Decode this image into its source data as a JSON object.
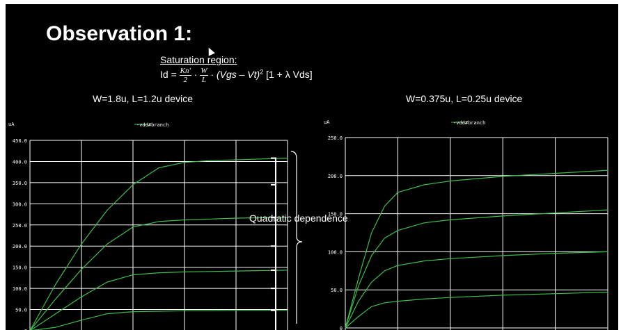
{
  "slide": {
    "title": "Observation 1:",
    "subheading": "Saturation region:",
    "formula": {
      "lhs": "Id =",
      "frac1_num": "Kn′",
      "frac1_den": "2",
      "dot1": "·",
      "frac2_num": "W",
      "frac2_den": "L",
      "term": "· (Vgs – Vt)",
      "exponent": "2",
      "tail": "[1 + λ Vds]"
    },
    "caption_left": "W=1.8u, L=1.2u device",
    "caption_right": "W=0.375u, L=0.25u device",
    "annotation": "Quadratic dependence"
  },
  "colors": {
    "background": "#000000",
    "grid": "#ffffff",
    "curve": "#3cbf4a",
    "text": "#ffffff"
  },
  "chart_data": [
    {
      "type": "line",
      "ylabel": "uA",
      "legend": "-vdd#branch",
      "legend_position": "top-center",
      "ylim": [
        0,
        450
      ],
      "yticks": [
        "0",
        "50.0",
        "100.0",
        "150.0",
        "200.0",
        "250.0",
        "300.0",
        "350.0",
        "400.0",
        "450.0"
      ],
      "ytick_values": [
        0,
        50,
        100,
        150,
        200,
        250,
        300,
        350,
        400,
        450
      ],
      "xlim": [
        0,
        5
      ],
      "grid": true,
      "series": [
        {
          "x": [
            0,
            0.5,
            1,
            1.5,
            2,
            2.5,
            3,
            3.5,
            4,
            4.5,
            5
          ],
          "values": [
            0,
            8,
            25,
            40,
            45,
            46,
            47,
            47,
            48,
            48,
            48
          ]
        },
        {
          "x": [
            0,
            0.5,
            1,
            1.5,
            2,
            2.5,
            3,
            3.5,
            4,
            4.5,
            5
          ],
          "values": [
            0,
            40,
            80,
            115,
            132,
            137,
            139,
            140,
            141,
            142,
            143
          ]
        },
        {
          "x": [
            0,
            0.5,
            1,
            1.5,
            2,
            2.5,
            3,
            3.5,
            4,
            4.5,
            5
          ],
          "values": [
            0,
            75,
            145,
            205,
            245,
            258,
            262,
            264,
            266,
            267,
            268
          ]
        },
        {
          "x": [
            0,
            0.5,
            1,
            1.5,
            2,
            2.5,
            3,
            3.5,
            4,
            4.5,
            5
          ],
          "values": [
            0,
            110,
            205,
            285,
            345,
            385,
            398,
            402,
            404,
            406,
            408
          ]
        }
      ]
    },
    {
      "type": "line",
      "ylabel": "uA",
      "legend": "-vdd#branch",
      "legend_position": "top-center",
      "ylim": [
        0,
        250
      ],
      "yticks": [
        "0",
        "50.0",
        "100.0",
        "150.0",
        "200.0",
        "250.0"
      ],
      "ytick_values": [
        0,
        50,
        100,
        150,
        200,
        250
      ],
      "xlim": [
        0,
        5
      ],
      "grid": true,
      "series": [
        {
          "x": [
            0,
            0.25,
            0.5,
            0.75,
            1,
            1.5,
            2,
            3,
            4,
            5
          ],
          "values": [
            0,
            15,
            28,
            33,
            35,
            38,
            40,
            43,
            45,
            47
          ]
        },
        {
          "x": [
            0,
            0.25,
            0.5,
            0.75,
            1,
            1.5,
            2,
            3,
            4,
            5
          ],
          "values": [
            0,
            35,
            60,
            75,
            82,
            88,
            91,
            95,
            98,
            100
          ]
        },
        {
          "x": [
            0,
            0.25,
            0.5,
            0.75,
            1,
            1.5,
            2,
            3,
            4,
            5
          ],
          "values": [
            0,
            55,
            95,
            118,
            128,
            138,
            142,
            147,
            151,
            155
          ]
        },
        {
          "x": [
            0,
            0.25,
            0.5,
            0.75,
            1,
            1.5,
            2,
            3,
            4,
            5
          ],
          "values": [
            0,
            65,
            125,
            160,
            178,
            188,
            193,
            199,
            203,
            207
          ]
        }
      ]
    }
  ]
}
